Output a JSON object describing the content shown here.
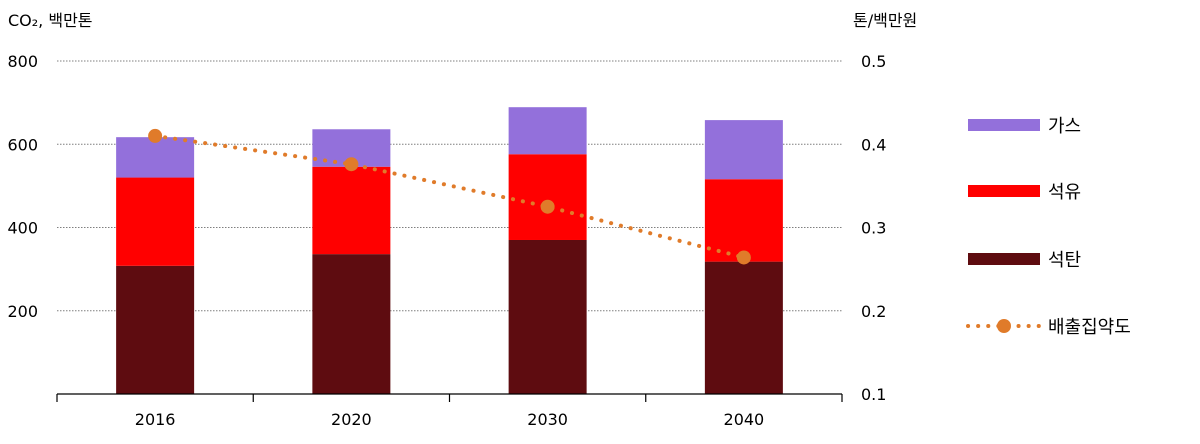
{
  "chart_data": {
    "type": "bar",
    "stacked": true,
    "categories": [
      "2016",
      "2020",
      "2030",
      "2040"
    ],
    "series": [
      {
        "name": "석탄",
        "values": [
          308,
          336,
          370,
          318
        ],
        "color": "#5e0c10"
      },
      {
        "name": "석유",
        "values": [
          212,
          210,
          206,
          198
        ],
        "color": "#ff0000"
      },
      {
        "name": "가스",
        "values": [
          97,
          90,
          113,
          142
        ],
        "color": "#9370db"
      }
    ],
    "line_series": {
      "name": "배출집약도",
      "values": [
        0.41,
        0.376,
        0.325,
        0.264
      ],
      "color": "#e07b2a",
      "axis": "right"
    },
    "y_left": {
      "label": "CO₂, 백만톤",
      "ticks": [
        "200",
        "400",
        "600",
        "800"
      ],
      "tick_values": [
        200,
        400,
        600,
        800
      ],
      "ylim": [
        0,
        800
      ]
    },
    "y_right": {
      "label": "톤/백만원",
      "ticks": [
        "0.1",
        "0.2",
        "0.3",
        "0.4",
        "0.5"
      ],
      "tick_values": [
        0.1,
        0.2,
        0.3,
        0.4,
        0.5
      ],
      "ylim": [
        0.1,
        0.5
      ]
    },
    "grid": true,
    "legend_position": "right",
    "legend": [
      "가스",
      "석유",
      "석탄",
      "배출집약도"
    ]
  }
}
